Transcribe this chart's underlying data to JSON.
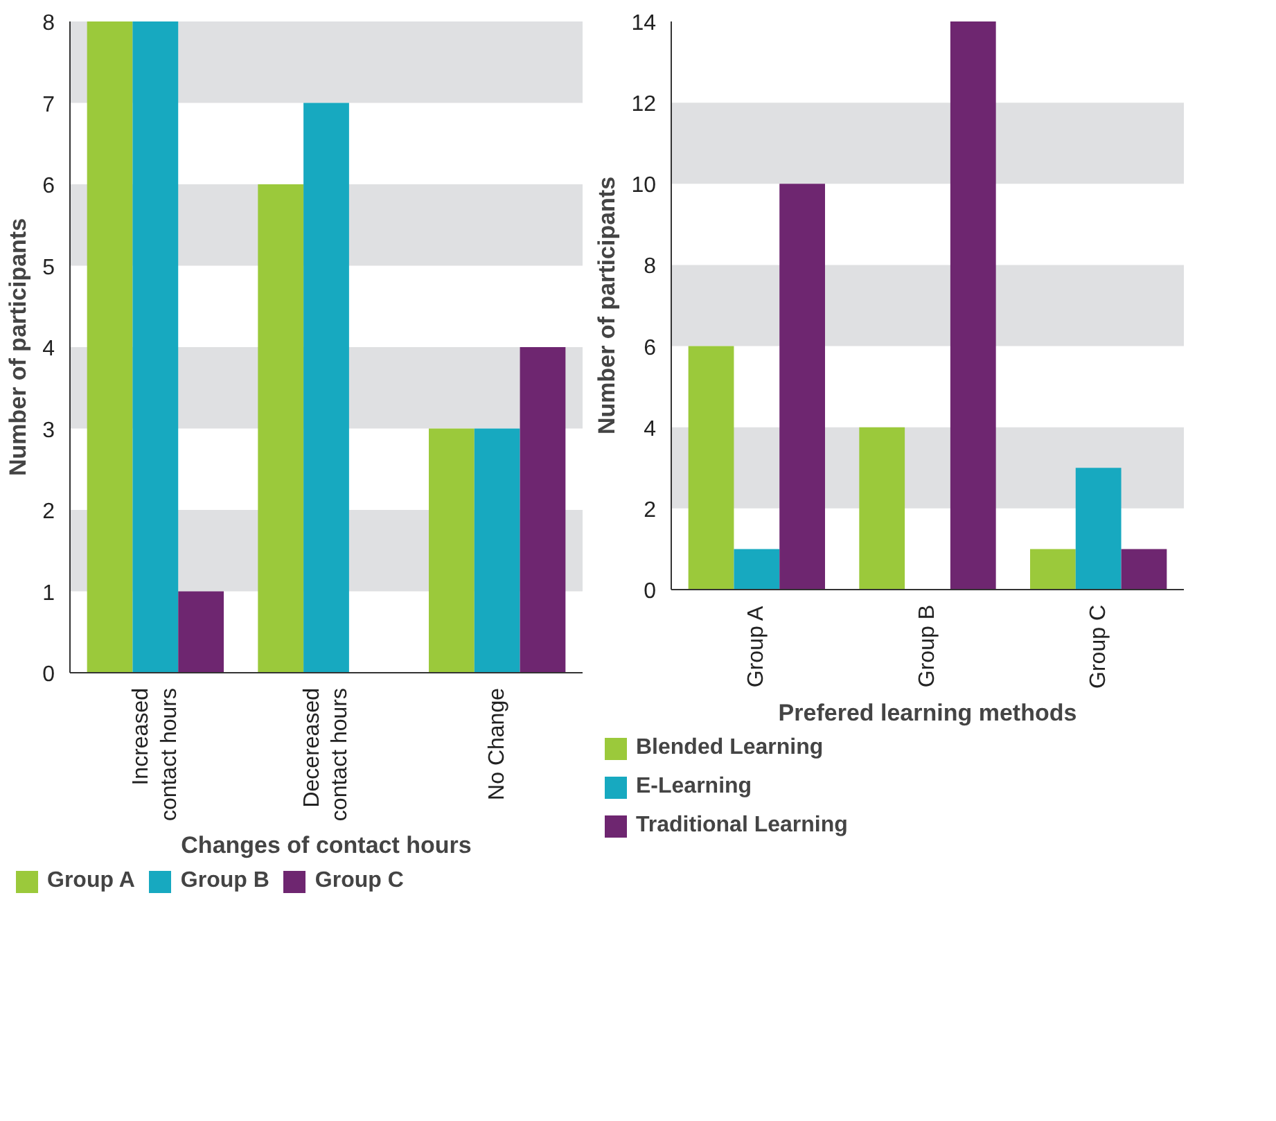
{
  "chart_data": [
    {
      "type": "bar",
      "xlabel": "Changes of contact hours",
      "ylabel": "Number of participants",
      "categories": [
        "Increased\ncontact hours",
        "Decereased\ncontact hours",
        "No Change"
      ],
      "series": [
        {
          "name": "Group A",
          "color": "#9bc93b",
          "values": [
            8,
            6,
            3
          ]
        },
        {
          "name": "Group B",
          "color": "#17a9c0",
          "values": [
            8,
            7,
            3
          ]
        },
        {
          "name": "Group C",
          "color": "#6e2670",
          "values": [
            1,
            0,
            4
          ]
        }
      ],
      "ylim": [
        0,
        8
      ],
      "yticks": [
        0,
        1,
        2,
        3,
        4,
        5,
        6,
        7,
        8
      ],
      "bands": [
        {
          "axis": "y",
          "from": 1,
          "to": 2,
          "color": "#dfe0e2"
        },
        {
          "axis": "y",
          "from": 3,
          "to": 4,
          "color": "#dfe0e2"
        },
        {
          "axis": "y",
          "from": 5,
          "to": 6,
          "color": "#dfe0e2"
        },
        {
          "axis": "y",
          "from": 7,
          "to": 8,
          "color": "#dfe0e2"
        }
      ],
      "legend": "bottom"
    },
    {
      "type": "bar",
      "xlabel": "Prefered learning methods",
      "ylabel": "Number of participants",
      "categories": [
        "Group A",
        "Group B",
        "Group C"
      ],
      "series": [
        {
          "name": "Blended Learning",
          "color": "#9bc93b",
          "values": [
            6,
            4,
            1
          ]
        },
        {
          "name": "E-Learning",
          "color": "#17a9c0",
          "values": [
            1,
            0,
            3
          ]
        },
        {
          "name": "Traditional Learning",
          "color": "#6e2670",
          "values": [
            10,
            14,
            1
          ]
        }
      ],
      "ylim": [
        0,
        14
      ],
      "yticks": [
        0,
        2,
        4,
        6,
        8,
        10,
        12,
        14
      ],
      "bands": [
        {
          "axis": "y",
          "from": 2,
          "to": 4,
          "color": "#dfe0e2"
        },
        {
          "axis": "y",
          "from": 6,
          "to": 8,
          "color": "#dfe0e2"
        },
        {
          "axis": "y",
          "from": 10,
          "to": 12,
          "color": "#dfe0e2"
        }
      ],
      "legend": "bottom"
    }
  ]
}
